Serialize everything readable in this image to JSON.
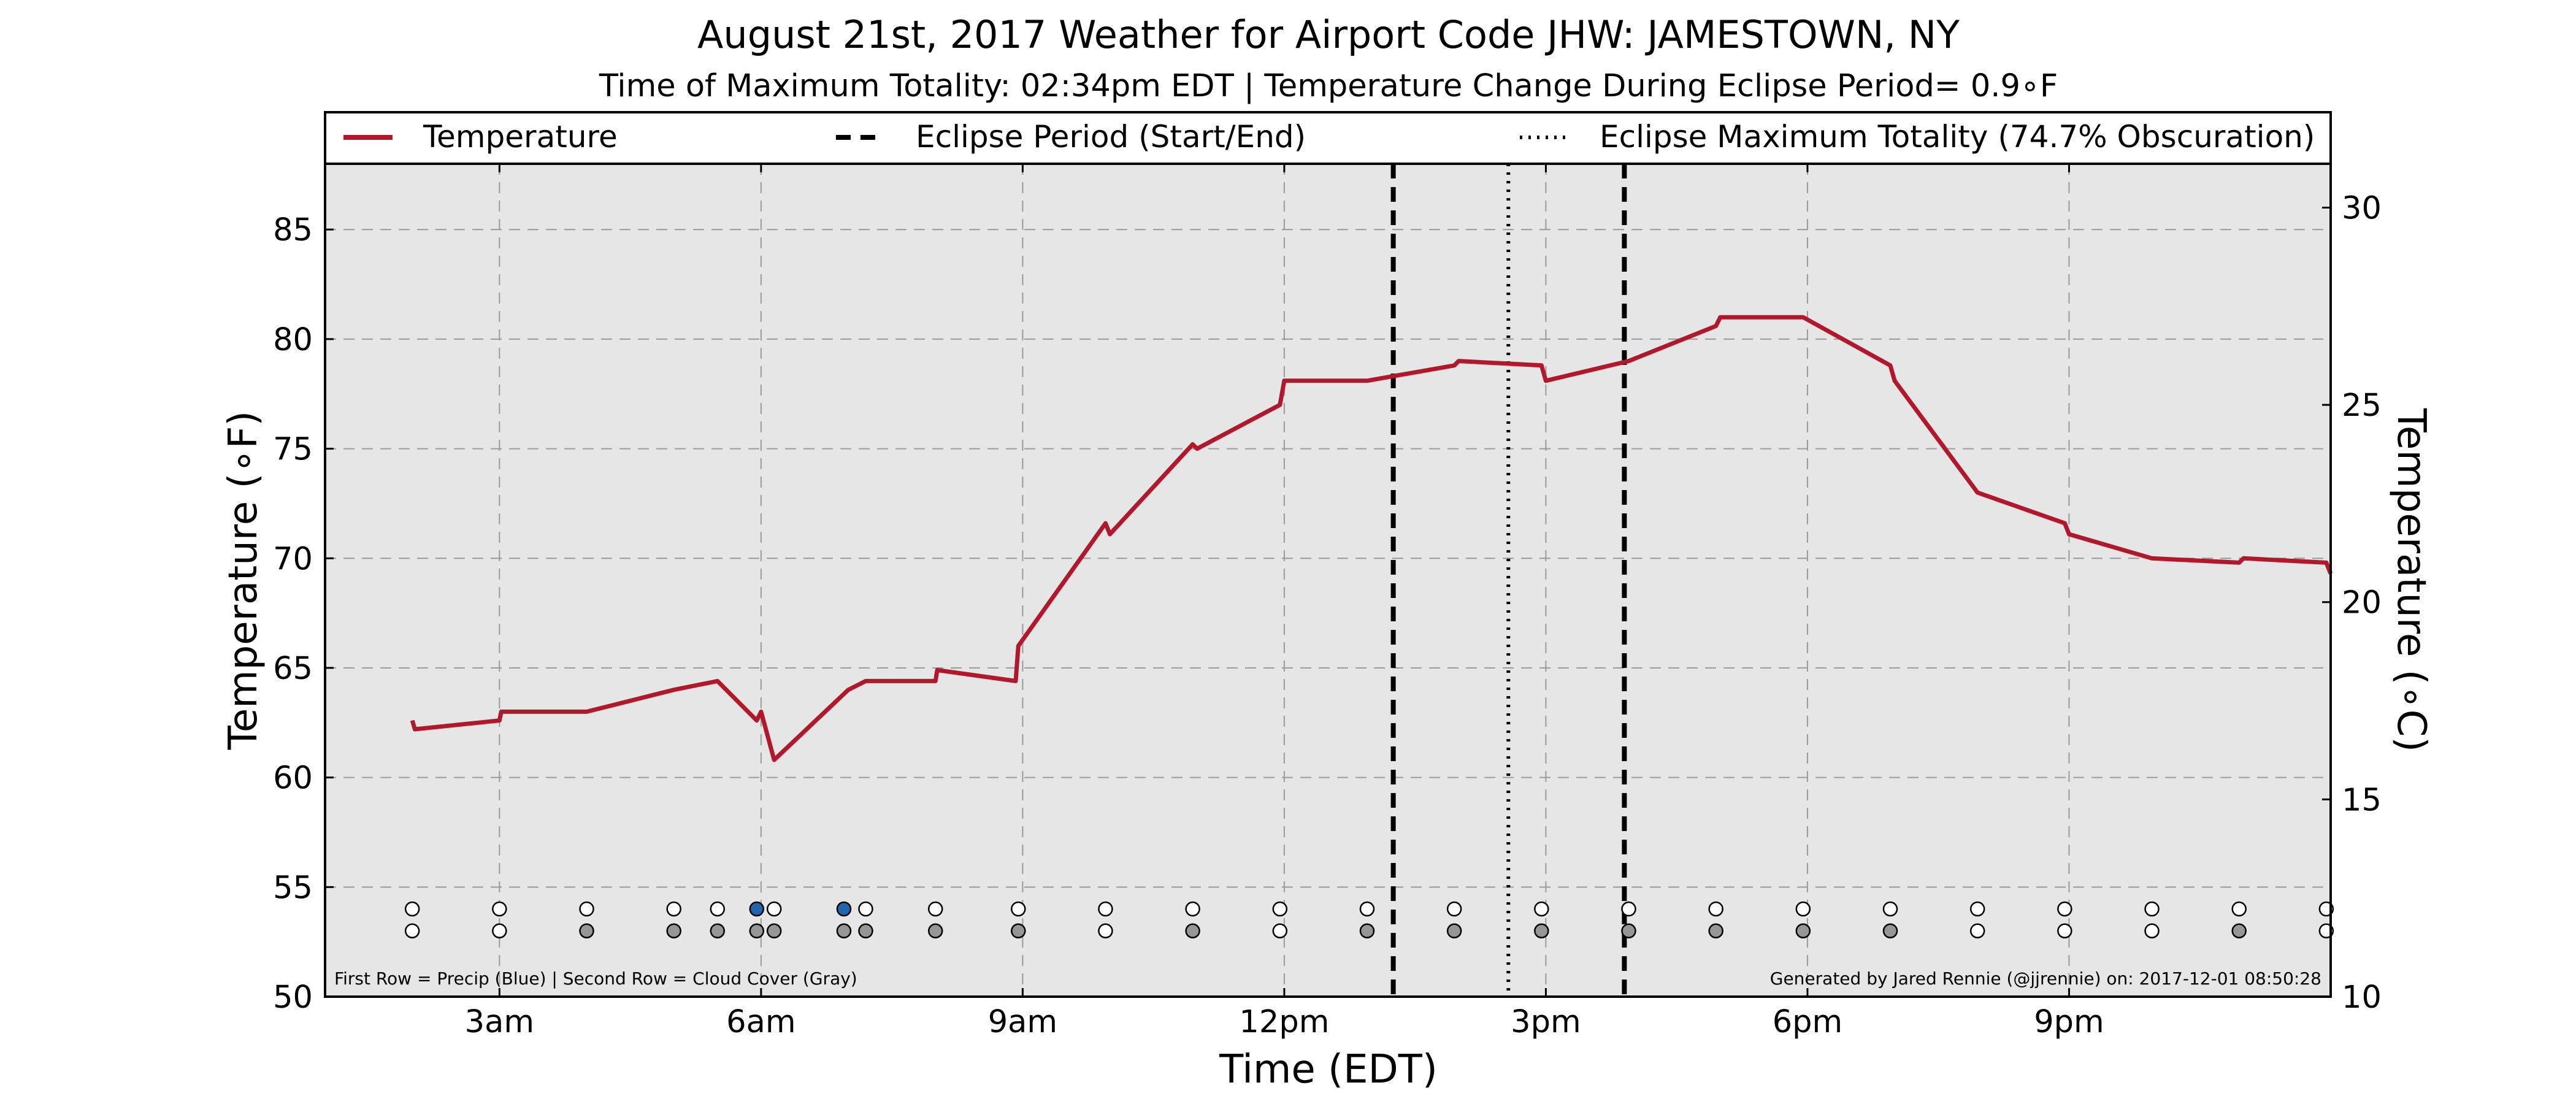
{
  "chart_data": {
    "type": "line",
    "title": "August 21st, 2017 Weather for Airport Code JHW: JAMESTOWN, NY",
    "subtitle": "Time of Maximum Totality: 02:34pm EDT | Temperature Change During Eclipse Period= 0.9∘F",
    "xlabel": "Time (EDT)",
    "ylabel": "Temperature (∘F)",
    "ylabel_right": "Temperature (∘C)",
    "xlim": [
      1.0,
      24.0
    ],
    "ylim": [
      50,
      88
    ],
    "ylim_right_celsius": [
      10,
      31.1
    ],
    "x_ticks": [
      {
        "x": 3,
        "label": "3am"
      },
      {
        "x": 6,
        "label": "6am"
      },
      {
        "x": 9,
        "label": "9am"
      },
      {
        "x": 12,
        "label": "12pm"
      },
      {
        "x": 15,
        "label": "3pm"
      },
      {
        "x": 18,
        "label": "6pm"
      },
      {
        "x": 21,
        "label": "9pm"
      }
    ],
    "y_ticks": [
      50,
      55,
      60,
      65,
      70,
      75,
      80,
      85
    ],
    "y_ticks_right": [
      10,
      15,
      20,
      25,
      30
    ],
    "grid": true,
    "legend_position": "top",
    "legend": [
      {
        "label": "Temperature",
        "style": "solid",
        "color": "#b2182b"
      },
      {
        "label": "Eclipse Period (Start/End)",
        "style": "dashed",
        "color": "#000000"
      },
      {
        "label": "Eclipse Maximum Totality (74.7% Obscuration)",
        "style": "dotted",
        "color": "#000000"
      }
    ],
    "series": [
      {
        "name": "Temperature",
        "color": "#b2182b",
        "x": [
          2.0,
          2.03,
          3.0,
          3.02,
          4.0,
          5.0,
          5.5,
          5.95,
          6.0,
          6.15,
          7.0,
          7.2,
          8.0,
          8.02,
          8.92,
          8.95,
          9.95,
          10.0,
          10.95,
          11.0,
          11.95,
          12.0,
          12.95,
          13.95,
          14.0,
          14.95,
          15.0,
          15.95,
          16.95,
          17.0,
          17.95,
          18.95,
          19.0,
          19.95,
          20.95,
          21.0,
          21.95,
          22.95,
          23.0,
          23.95,
          24.0
        ],
        "y": [
          62.6,
          62.2,
          62.6,
          63.0,
          63.0,
          64.0,
          64.4,
          62.6,
          63.0,
          60.8,
          64.0,
          64.4,
          64.4,
          64.9,
          64.4,
          66.0,
          71.6,
          71.1,
          75.2,
          75.0,
          77.0,
          78.1,
          78.1,
          78.8,
          79.0,
          78.8,
          78.1,
          79.0,
          80.6,
          81.0,
          81.0,
          78.8,
          78.1,
          73.0,
          71.6,
          71.1,
          70.0,
          69.8,
          70.0,
          69.8,
          69.3
        ]
      }
    ],
    "eclipse_period": {
      "start": 13.25,
      "end": 15.9,
      "label": "Eclipse Period (Start/End)"
    },
    "eclipse_max": {
      "x": 14.57,
      "label": "Eclipse Maximum Totality (74.7% Obscuration)"
    },
    "observation_rows": {
      "precip_y": 54.0,
      "cloud_y": 53.0,
      "precip": [
        {
          "x": 2.0,
          "v": "none"
        },
        {
          "x": 3.0,
          "v": "none"
        },
        {
          "x": 4.0,
          "v": "none"
        },
        {
          "x": 5.0,
          "v": "none"
        },
        {
          "x": 5.5,
          "v": "none"
        },
        {
          "x": 5.95,
          "v": "precip"
        },
        {
          "x": 6.15,
          "v": "none"
        },
        {
          "x": 6.95,
          "v": "precip"
        },
        {
          "x": 7.2,
          "v": "none"
        },
        {
          "x": 8.0,
          "v": "none"
        },
        {
          "x": 8.95,
          "v": "none"
        },
        {
          "x": 9.95,
          "v": "none"
        },
        {
          "x": 10.95,
          "v": "none"
        },
        {
          "x": 11.95,
          "v": "none"
        },
        {
          "x": 12.95,
          "v": "none"
        },
        {
          "x": 13.95,
          "v": "none"
        },
        {
          "x": 14.95,
          "v": "none"
        },
        {
          "x": 15.95,
          "v": "none"
        },
        {
          "x": 16.95,
          "v": "none"
        },
        {
          "x": 17.95,
          "v": "none"
        },
        {
          "x": 18.95,
          "v": "none"
        },
        {
          "x": 19.95,
          "v": "none"
        },
        {
          "x": 20.95,
          "v": "none"
        },
        {
          "x": 21.95,
          "v": "none"
        },
        {
          "x": 22.95,
          "v": "none"
        },
        {
          "x": 23.95,
          "v": "none"
        }
      ],
      "cloud": [
        {
          "x": 2.0,
          "v": "clear"
        },
        {
          "x": 3.0,
          "v": "clear"
        },
        {
          "x": 4.0,
          "v": "cloudy"
        },
        {
          "x": 5.0,
          "v": "cloudy"
        },
        {
          "x": 5.5,
          "v": "cloudy"
        },
        {
          "x": 5.95,
          "v": "cloudy"
        },
        {
          "x": 6.15,
          "v": "cloudy"
        },
        {
          "x": 6.95,
          "v": "cloudy"
        },
        {
          "x": 7.2,
          "v": "cloudy"
        },
        {
          "x": 8.0,
          "v": "cloudy"
        },
        {
          "x": 8.95,
          "v": "cloudy"
        },
        {
          "x": 9.95,
          "v": "clear"
        },
        {
          "x": 10.95,
          "v": "cloudy"
        },
        {
          "x": 11.95,
          "v": "clear"
        },
        {
          "x": 12.95,
          "v": "cloudy"
        },
        {
          "x": 13.95,
          "v": "cloudy"
        },
        {
          "x": 14.95,
          "v": "cloudy"
        },
        {
          "x": 15.95,
          "v": "cloudy"
        },
        {
          "x": 16.95,
          "v": "cloudy"
        },
        {
          "x": 17.95,
          "v": "cloudy"
        },
        {
          "x": 18.95,
          "v": "cloudy"
        },
        {
          "x": 19.95,
          "v": "clear"
        },
        {
          "x": 20.95,
          "v": "clear"
        },
        {
          "x": 21.95,
          "v": "clear"
        },
        {
          "x": 22.95,
          "v": "cloudy"
        },
        {
          "x": 23.95,
          "v": "clear"
        }
      ]
    },
    "annotations": {
      "bottom_left": "First Row = Precip (Blue) | Second Row = Cloud Cover (Gray)",
      "bottom_right": "Generated by Jared Rennie (@jjrennie) on: 2017-12-01 08:50:28"
    },
    "colors": {
      "plot_background": "#e6e6e6",
      "temperature": "#b2182b",
      "precip_dot": "#2166ac",
      "cloud_dot": "#969696",
      "empty_dot": "#ffffff"
    }
  }
}
